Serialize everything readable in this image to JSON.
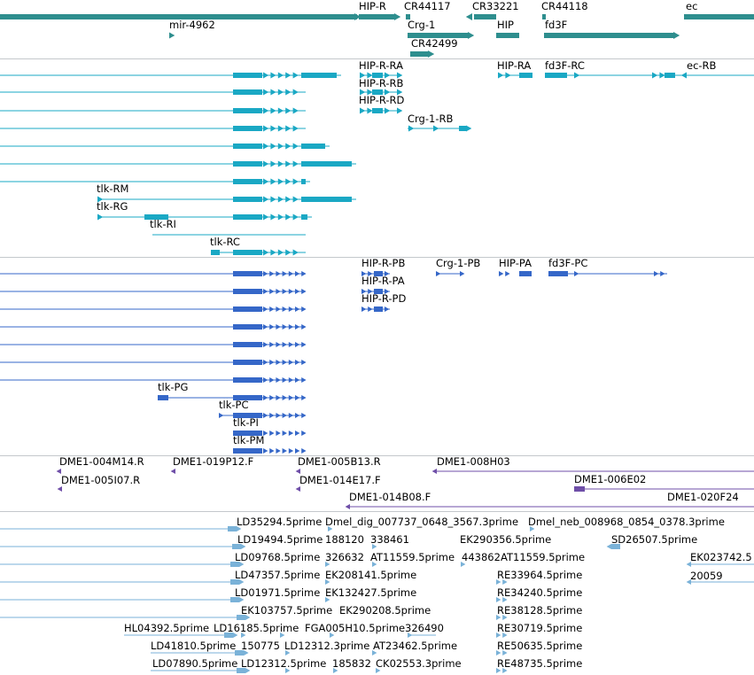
{
  "colors": {
    "genes": "#2e8e8e",
    "mrna_cyan": "#1aa8c4",
    "mrna_blue": "#3567c8",
    "bac_purple": "#6f4fa8",
    "est_lightblue": "#7ab2d8",
    "separator": "#c4c8cc"
  },
  "tracks": {
    "genes": {
      "labels": [
        "HIP-R",
        "CR44117",
        "CR33221",
        "CR44118",
        "ec",
        "mir-4962",
        "Crg-1",
        "HIP",
        "fd3F",
        "CR42499"
      ]
    },
    "transcripts_cyan": {
      "labels": [
        "HIP-R-RA",
        "HIP-RA",
        "fd3F-RC",
        "ec-RB",
        "HIP-R-RB",
        "HIP-R-RD",
        "Crg-1-RB",
        "tlk-RM",
        "tlk-RG",
        "tlk-RI",
        "tlk-RC"
      ]
    },
    "transcripts_blue": {
      "labels": [
        "HIP-R-PB",
        "Crg-1-PB",
        "HIP-PA",
        "fd3F-PC",
        "HIP-R-PA",
        "HIP-R-PD",
        "tlk-PG",
        "tlk-PC",
        "tlk-PI",
        "tlk-PM"
      ]
    },
    "bac_ends": {
      "labels": [
        "DME1-004M14.R",
        "DME1-019P12.F",
        "DME1-005B13.R",
        "DME1-008H03",
        "DME1-005I07.R",
        "DME1-014E17.F",
        "DME1-006E02",
        "DME1-014B08.F",
        "DME1-020F24"
      ]
    },
    "ests": {
      "labels": [
        "LD35294.5prime",
        "Dmel_dig_007737_0648_3567.3prime",
        "Dmel_neb_008968_0854_0378.3prime",
        "LD19494.5prime",
        "188120",
        "338461",
        "EK290356.5prime",
        "SD26507.5prime",
        "LD09768.5prime",
        "326632",
        "AT11559.5prime",
        "443862",
        "AT11559.5prime",
        "EK023742.5",
        "LD47357.5prime",
        "EK208141.5prime",
        "RE33964.5prime",
        "20059",
        "LD01971.5prime",
        "EK132427.5prime",
        "RE34240.5prime",
        "EK103757.5prime",
        "EK290208.5prime",
        "RE38128.5prime",
        "HL04392.5prime",
        "LD16185.5prime",
        "FGA005H10.5prime",
        "326490",
        "RE30719.5prime",
        "LD41810.5prime",
        "150775",
        "LD12312.3prime",
        "AT23462.5prime",
        "RE50635.5prime",
        "LD07890.5prime",
        "LD12312.5prime",
        "185832",
        "CK02553.3prime",
        "RE48735.5prime"
      ]
    }
  }
}
